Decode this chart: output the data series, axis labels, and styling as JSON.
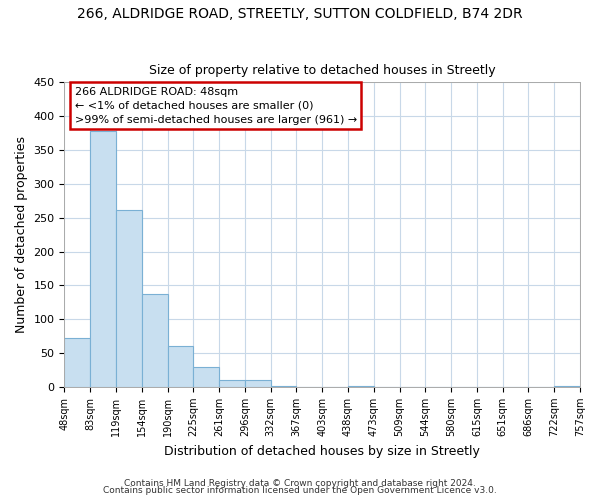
{
  "title_line1": "266, ALDRIDGE ROAD, STREETLY, SUTTON COLDFIELD, B74 2DR",
  "title_line2": "Size of property relative to detached houses in Streetly",
  "xlabel": "Distribution of detached houses by size in Streetly",
  "ylabel": "Number of detached properties",
  "bin_labels": [
    "48sqm",
    "83sqm",
    "119sqm",
    "154sqm",
    "190sqm",
    "225sqm",
    "261sqm",
    "296sqm",
    "332sqm",
    "367sqm",
    "403sqm",
    "438sqm",
    "473sqm",
    "509sqm",
    "544sqm",
    "580sqm",
    "615sqm",
    "651sqm",
    "686sqm",
    "722sqm",
    "757sqm"
  ],
  "bar_heights": [
    72,
    378,
    262,
    137,
    60,
    29,
    10,
    10,
    2,
    0,
    0,
    2,
    0,
    0,
    0,
    0,
    0,
    0,
    0,
    2
  ],
  "bar_color": "#c8dff0",
  "bar_edge_color": "#7ab0d4",
  "annotation_line1": "266 ALDRIDGE ROAD: 48sqm",
  "annotation_line2": "← <1% of detached houses are smaller (0)",
  "annotation_line3": ">99% of semi-detached houses are larger (961) →",
  "annotation_box_color": "#ffffff",
  "annotation_box_edge_color": "#cc0000",
  "ylim": [
    0,
    450
  ],
  "yticks": [
    0,
    50,
    100,
    150,
    200,
    250,
    300,
    350,
    400,
    450
  ],
  "footer_line1": "Contains HM Land Registry data © Crown copyright and database right 2024.",
  "footer_line2": "Contains public sector information licensed under the Open Government Licence v3.0.",
  "background_color": "#ffffff",
  "grid_color": "#c8d8e8"
}
